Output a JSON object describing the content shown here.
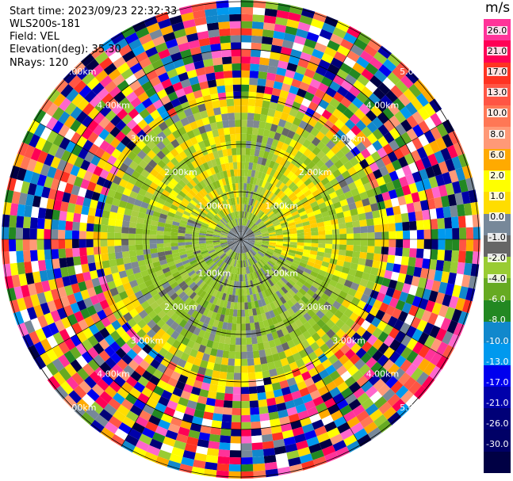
{
  "header": {
    "start_time": "Start time: 2023/09/23 22:32:33",
    "station": "WLS200s-181",
    "field": "Field: VEL",
    "elevation": "Elevation(deg): 35.30",
    "nrays": "NRays: 120"
  },
  "colorbar": {
    "unit": "m/s",
    "labels": [
      "26.0",
      "21.0",
      "17.0",
      "13.0",
      "10.0",
      "8.0",
      "6.0",
      "2.0",
      "1.0",
      "0.0",
      "-1.0",
      "-2.0",
      "-4.0",
      "-6.0",
      "-8.0",
      "-10.0",
      "-13.0",
      "-17.0",
      "-21.0",
      "-26.0",
      "-30.0"
    ],
    "colors": [
      "#ff3399",
      "#ff0055",
      "#ff3322",
      "#ff5544",
      "#ff7755",
      "#ff9977",
      "#ffaa00",
      "#ffff00",
      "#ffdd00",
      "#778899",
      "#666666",
      "#99cc33",
      "#66aa22",
      "#228822",
      "#1188cc",
      "#0099ee",
      "#0000ee",
      "#0000aa",
      "#000077",
      "#000066",
      "#000044"
    ]
  },
  "range_labels": [
    "1.00km",
    "2.00km",
    "3.00km",
    "4.00km",
    "5.00km",
    "1.00km",
    "2.00km",
    "3.00km",
    "4.00km",
    "5.00km",
    "1.00km",
    "2.00km",
    "3.00km",
    "4.00km",
    "5.00km",
    "1.00km",
    "2.00km",
    "3.00km",
    "4.00km",
    "5.00km"
  ]
}
